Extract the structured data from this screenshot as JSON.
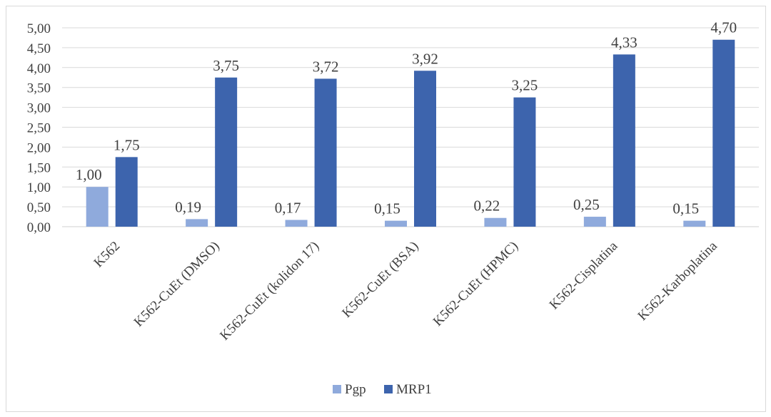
{
  "chart_data": {
    "type": "bar",
    "categories": [
      "K562",
      "K562-CuEt (DMSO)",
      "K562-CuEt (kolidon 17)",
      "K562-CuEt (BSA)",
      "K562-CuEt (HPMC)",
      "K562-Cisplatina",
      "K562-Karboplatina"
    ],
    "series": [
      {
        "name": "Pgp",
        "color": "#8faadc",
        "values": [
          1.0,
          0.19,
          0.17,
          0.15,
          0.22,
          0.25,
          0.15
        ],
        "labels": [
          "1,00",
          "0,19",
          "0,17",
          "0,15",
          "0,22",
          "0,25",
          "0,15"
        ]
      },
      {
        "name": "MRP1",
        "color": "#3d64ad",
        "values": [
          1.75,
          3.75,
          3.72,
          3.92,
          3.25,
          4.33,
          4.7
        ],
        "labels": [
          "1,75",
          "3,75",
          "3,72",
          "3,92",
          "3,25",
          "4,33",
          "4,70"
        ]
      }
    ],
    "ylim": [
      0,
      5
    ],
    "yticks": [
      "0,00",
      "0,50",
      "1,00",
      "1,50",
      "2,00",
      "2,50",
      "3,00",
      "3,50",
      "4,00",
      "4,50",
      "5,00"
    ],
    "title": "",
    "xlabel": "",
    "ylabel": "",
    "grid": true,
    "legend_position": "bottom"
  }
}
